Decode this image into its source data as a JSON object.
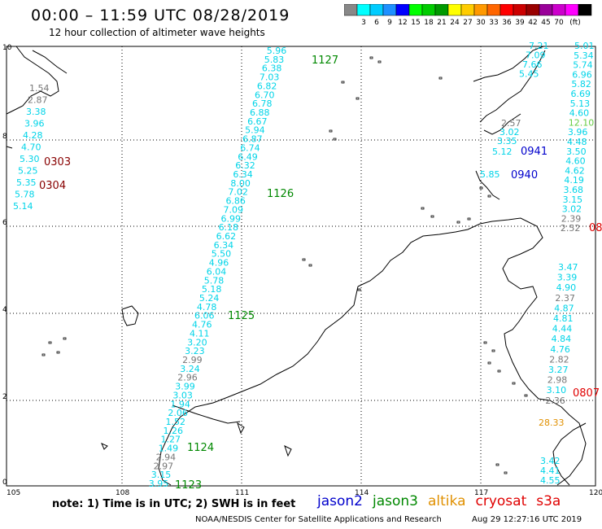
{
  "header": {
    "title": "00:00 – 11:59 UTC 08/28/2019",
    "subtitle": "12 hour collection of altimeter wave heights"
  },
  "scale": {
    "colors": [
      "#888888",
      "#00ffff",
      "#00ccff",
      "#1e90ff",
      "#0000ff",
      "#00ff00",
      "#00cc00",
      "#009900",
      "#ffff00",
      "#ffcc00",
      "#ff9900",
      "#ff6600",
      "#ff0000",
      "#cc0000",
      "#990000",
      "#990099",
      "#cc00cc",
      "#ff00ff",
      "#000000"
    ],
    "labels": [
      "3",
      "6",
      "9",
      "12",
      "15",
      "18",
      "21",
      "24",
      "27",
      "30",
      "33",
      "36",
      "39",
      "42",
      "45",
      "70"
    ],
    "unit": "(ft)"
  },
  "axes": {
    "x_ticks": [
      "105",
      "108",
      "111",
      "114",
      "117",
      "120"
    ],
    "y_ticks": [
      "0",
      "2",
      "4",
      "6",
      "8",
      "10"
    ]
  },
  "colors": {
    "cyan": "#00d4e8",
    "gray": "#777777",
    "green": "#008800",
    "darkred": "#880000",
    "red": "#e00000",
    "blue": "#0000cc",
    "orange": "#e09000",
    "lightgreen": "#66cc44"
  },
  "passes": [
    {
      "label": "1127",
      "color": "green"
    },
    {
      "label": "1126",
      "color": "green"
    },
    {
      "label": "1125",
      "color": "green"
    },
    {
      "label": "1124",
      "color": "green"
    },
    {
      "label": "1123",
      "color": "green"
    },
    {
      "label": "0303",
      "color": "darkred"
    },
    {
      "label": "0304",
      "color": "darkred"
    },
    {
      "label": "0941",
      "color": "blue"
    },
    {
      "label": "0940",
      "color": "blue"
    },
    {
      "label": "0807",
      "color": "red"
    },
    {
      "label": "08",
      "color": "red"
    }
  ],
  "track_main": [
    "5.96",
    "5.83",
    "6.38",
    "7.03",
    "6.82",
    "6.70",
    "6.78",
    "6.88",
    "6.67",
    "5.94",
    "6.87",
    "6.74",
    "6.49",
    "6.32",
    "6.34",
    "8.00",
    "7.02",
    "6.86",
    "7.09",
    "6.99",
    "6.18",
    "6.62",
    "6.34",
    "5.50",
    "4.96",
    "6.04",
    "5.78",
    "5.18",
    "5.24",
    "4.78",
    "6.06",
    "4.76",
    "4.11",
    "3.20",
    "3.23",
    "2.99",
    "3.24",
    "2.96",
    "3.99",
    "3.03",
    "1.94",
    "2.06",
    "1.52",
    "1.26",
    "1.27",
    "1.49",
    "2.94",
    "2.97",
    "3.15",
    "3.95"
  ],
  "track_main_gray": [
    false,
    false,
    false,
    false,
    false,
    false,
    false,
    false,
    false,
    false,
    false,
    false,
    false,
    false,
    false,
    false,
    false,
    false,
    false,
    false,
    false,
    false,
    false,
    false,
    false,
    false,
    false,
    false,
    false,
    false,
    false,
    false,
    false,
    false,
    false,
    true,
    false,
    true,
    false,
    false,
    false,
    false,
    false,
    false,
    false,
    false,
    true,
    true,
    false,
    false
  ],
  "track_left": [
    "1.54",
    "2.87",
    "3.38",
    "3.96",
    "4.28",
    "4.70",
    "5.30",
    "5.25",
    "5.35",
    "5.78",
    "5.14"
  ],
  "track_left_gray": [
    true,
    true,
    false,
    false,
    false,
    false,
    false,
    false,
    false,
    false,
    false
  ],
  "track_ne": [
    "7.21",
    "7.09",
    "7.66",
    "5.45"
  ],
  "track_mid_right": [
    "2.57",
    "3.02",
    "3.35",
    "5.12",
    "5.85"
  ],
  "track_mid_right_gray": [
    true,
    false,
    false,
    false,
    false
  ],
  "track_right": [
    "5.01",
    "5.34",
    "5.74",
    "6.96",
    "5.82",
    "6.69",
    "5.13",
    "4.60",
    "12.10",
    "3.96",
    "4.48",
    "3.50",
    "4.60",
    "4.62",
    "4.19",
    "3.68",
    "3.15",
    "3.02",
    "2.39",
    "2.52"
  ],
  "track_right_gray": [
    false,
    false,
    false,
    false,
    false,
    false,
    false,
    false,
    false,
    false,
    false,
    false,
    false,
    false,
    false,
    false,
    false,
    false,
    true,
    true
  ],
  "track_right_lightgreen": [
    false,
    false,
    false,
    false,
    false,
    false,
    false,
    false,
    true,
    false,
    false,
    false,
    false,
    false,
    false,
    false,
    false,
    false,
    false,
    false
  ],
  "track_lower_right": [
    "3.47",
    "3.39",
    "4.90",
    "2.37",
    "4.87",
    "4.81",
    "4.44",
    "4.84",
    "4.76",
    "2.82",
    "3.27",
    "2.98",
    "3.10",
    "2.36"
  ],
  "track_lower_right_gray": [
    false,
    false,
    false,
    true,
    false,
    false,
    false,
    false,
    false,
    true,
    false,
    true,
    false,
    true
  ],
  "track_bottom_right": [
    "3.42",
    "4.41",
    "4.55"
  ],
  "altika_value": "28.33",
  "note": "note: 1) Time is in UTC; 2) SWH is in feet",
  "legend": [
    {
      "name": "jason2",
      "color": "#0000cc"
    },
    {
      "name": "jason3",
      "color": "#008800"
    },
    {
      "name": "altika",
      "color": "#e09000"
    },
    {
      "name": "cryosat",
      "color": "#e00000"
    },
    {
      "name": "s3a",
      "color": "#e00000"
    }
  ],
  "credit": "NOAA/NESDIS Center for Satellite Applications and Research",
  "credit_time": "Aug 29 12:27:16 UTC 2019"
}
